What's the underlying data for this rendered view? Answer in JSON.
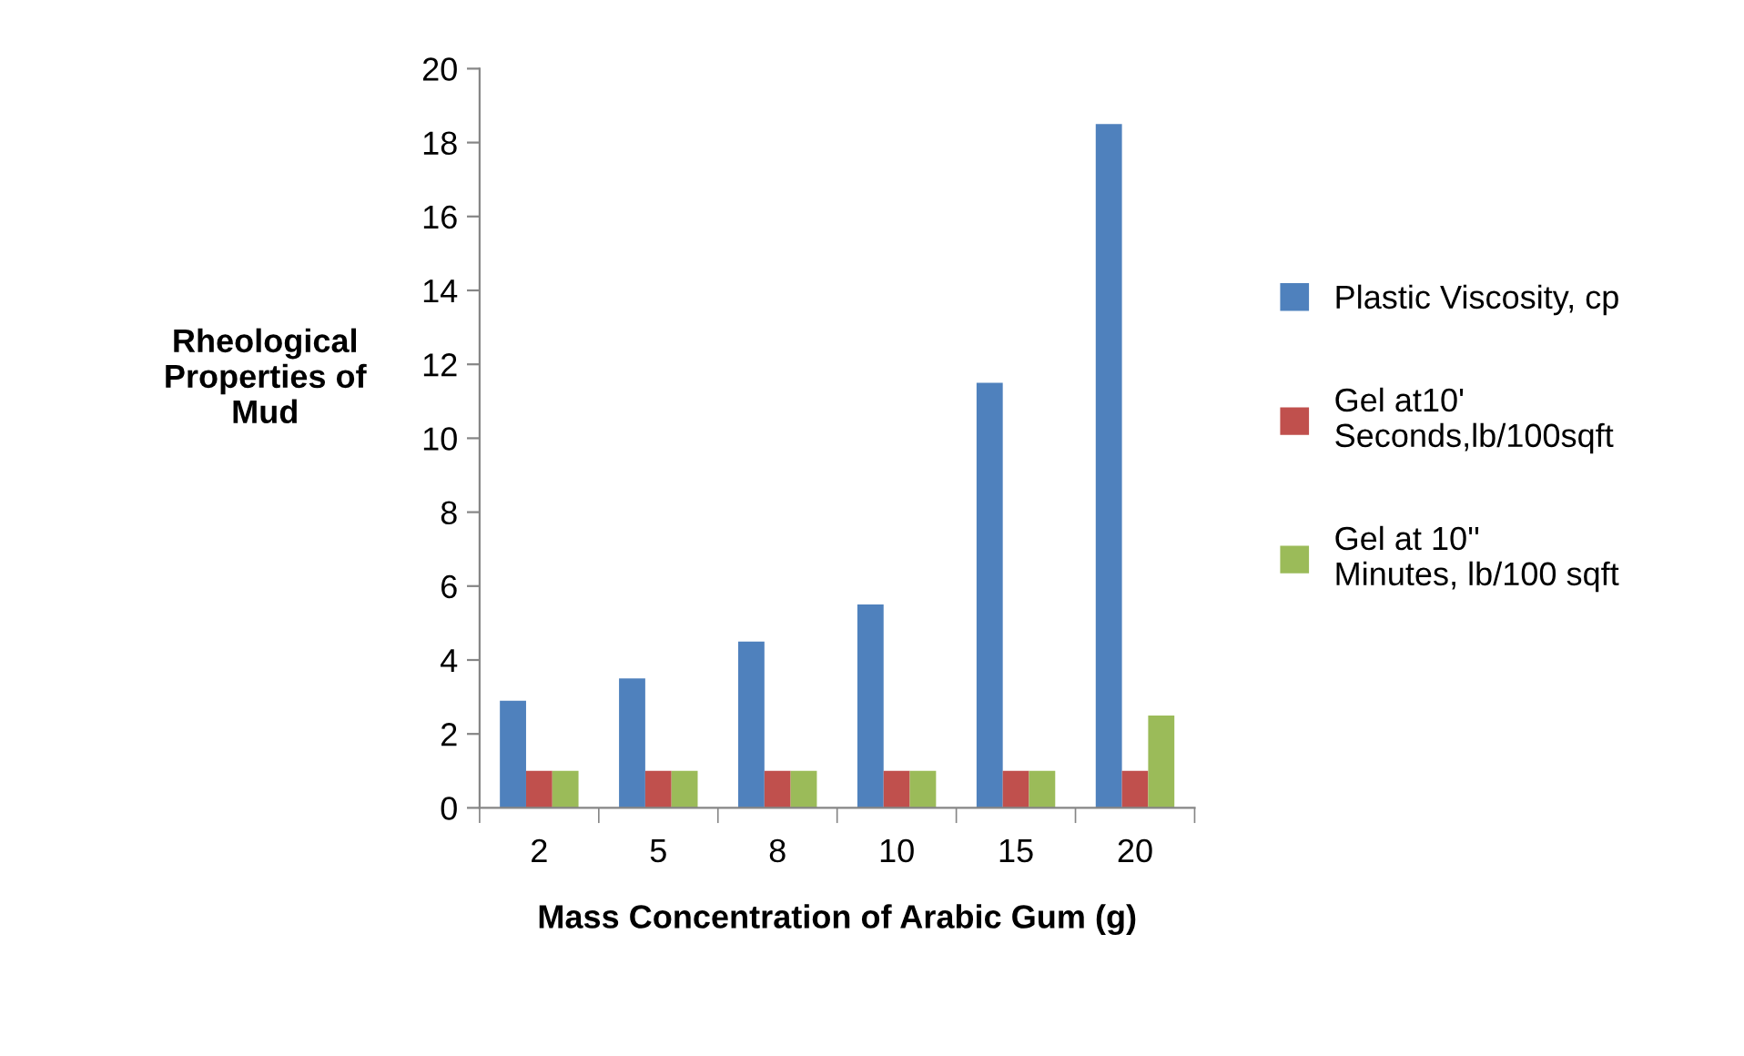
{
  "chart_data": {
    "type": "bar",
    "xlabel": "Mass Concentration of Arabic Gum (g)",
    "ylabel": "Rheological\nProperties of\nMud",
    "categories": [
      "2",
      "5",
      "8",
      "10",
      "15",
      "20"
    ],
    "series": [
      {
        "name": "Plastic Viscosity, cp",
        "color": "#4f81bd",
        "values": [
          2.9,
          3.5,
          4.5,
          5.5,
          11.5,
          18.5
        ]
      },
      {
        "name": "Gel at10'\nSeconds,lb/100sqft",
        "color": "#c0504d",
        "values": [
          1,
          1,
          1,
          1,
          1,
          1
        ]
      },
      {
        "name": "Gel at 10''\nMinutes, lb/100 sqft",
        "color": "#9bbb59",
        "values": [
          1,
          1,
          1,
          1,
          1,
          2.5
        ]
      }
    ],
    "ylim": [
      0,
      20
    ],
    "yticks": [
      0,
      2,
      4,
      6,
      8,
      10,
      12,
      14,
      16,
      18,
      20
    ],
    "grid": false,
    "legend": "right"
  }
}
